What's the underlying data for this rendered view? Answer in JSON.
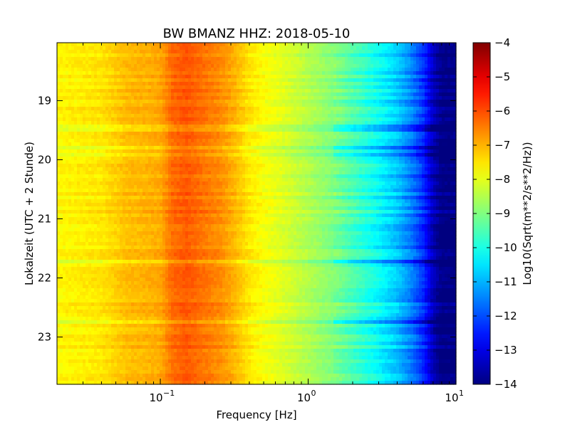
{
  "chart_data": {
    "type": "heatmap",
    "title": "BW BMANZ HHZ: 2018-05-10",
    "xlabel": "Frequency [Hz]",
    "ylabel": "Lokalzeit (UTC + 2 Stunde)",
    "x_scale": "log",
    "xlim": [
      0.02,
      10
    ],
    "x_ticks": [
      {
        "value": 0.1,
        "base": "10",
        "exp": "-1"
      },
      {
        "value": 1,
        "base": "10",
        "exp": "0"
      },
      {
        "value": 10,
        "base": "10",
        "exp": "1"
      }
    ],
    "ylim": [
      18.02,
      23.8
    ],
    "y_ticks": [
      19,
      20,
      21,
      22,
      23
    ],
    "y_tick_labels": [
      "19",
      "20",
      "21",
      "22",
      "23"
    ],
    "colorbar": {
      "label": "Log10(Sqrt(m**2/s**2/Hz))",
      "range": [
        -14,
        -4
      ],
      "colormap": "jet",
      "ticks": [
        -4,
        -5,
        -6,
        -7,
        -8,
        -9,
        -10,
        -11,
        -12,
        -13,
        -14
      ],
      "tick_labels": [
        "−4",
        "−5",
        "−6",
        "−7",
        "−8",
        "−9",
        "−10",
        "−11",
        "−12",
        "−13",
        "−14"
      ]
    },
    "spectrum_profile": {
      "frequency_hz": [
        0.02,
        0.04,
        0.06,
        0.08,
        0.1,
        0.12,
        0.15,
        0.2,
        0.25,
        0.3,
        0.4,
        0.5,
        0.7,
        1.0,
        1.5,
        2.0,
        3.0,
        4.0,
        5.0,
        6.0,
        7.0,
        8.0,
        10.0
      ],
      "log10_amplitude": [
        -7.7,
        -7.5,
        -7.1,
        -7.0,
        -6.9,
        -6.3,
        -6.1,
        -6.4,
        -6.6,
        -6.9,
        -7.5,
        -7.8,
        -8.1,
        -8.5,
        -9.0,
        -9.5,
        -10.2,
        -10.8,
        -11.5,
        -12.3,
        -13.4,
        -14.0,
        -14.0
      ]
    },
    "grid": false
  }
}
